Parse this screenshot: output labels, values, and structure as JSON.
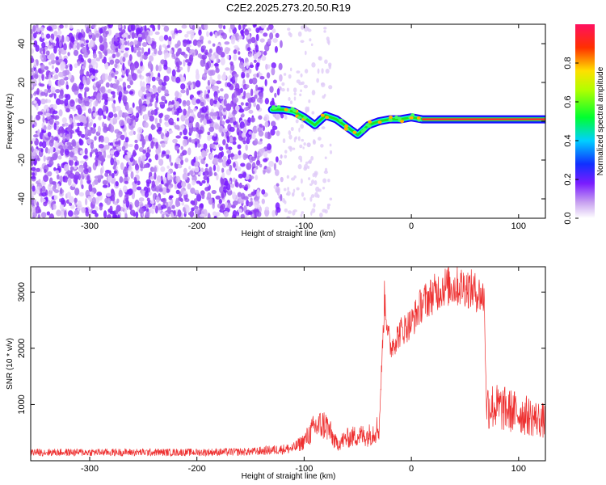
{
  "title": "C2E2.2025.273.20.50.R19",
  "chart_data": [
    {
      "type": "heatmap",
      "xlabel": "Height of straight line (km)",
      "ylabel": "Frequency (Hz)",
      "xlim": [
        -355,
        125
      ],
      "ylim": [
        -50,
        50
      ],
      "xticks": [
        -300,
        -200,
        -100,
        0,
        100
      ],
      "yticks": [
        -40,
        -20,
        0,
        20,
        40
      ],
      "colorbar": {
        "label": "Normalized spectral amplitude",
        "range": [
          0,
          1
        ],
        "ticks": [
          "0.0",
          "0.2",
          "0.4",
          "0.6",
          "0.8"
        ]
      },
      "trace": {
        "x": [
          -130,
          -120,
          -110,
          -100,
          -90,
          -80,
          -70,
          -60,
          -50,
          -40,
          -30,
          -20,
          -10,
          0,
          10,
          50,
          125
        ],
        "y": [
          6,
          6,
          5,
          2,
          -2,
          3,
          1,
          -3,
          -7,
          -2,
          0,
          1,
          1,
          2,
          1,
          1,
          1
        ]
      },
      "grid": false
    },
    {
      "type": "line",
      "xlabel": "Height of straight line (km)",
      "ylabel": "SNR (10 * v/v)",
      "xlim": [
        -355,
        125
      ],
      "ylim": [
        0,
        3450
      ],
      "xticks": [
        -300,
        -200,
        -100,
        0,
        100
      ],
      "yticks": [
        1000,
        2000,
        3000
      ],
      "series": [
        {
          "color": "#ee3030",
          "x": [
            -355,
            -300,
            -250,
            -200,
            -150,
            -110,
            -100,
            -90,
            -80,
            -70,
            -60,
            -50,
            -40,
            -30,
            -25,
            -20,
            -10,
            0,
            10,
            30,
            50,
            60,
            68,
            70,
            80,
            100,
            125
          ],
          "y": [
            150,
            150,
            150,
            150,
            160,
            220,
            350,
            600,
            650,
            300,
            400,
            450,
            450,
            600,
            2900,
            2000,
            2300,
            2450,
            2800,
            3100,
            3100,
            3000,
            2900,
            1000,
            950,
            850,
            700
          ]
        }
      ],
      "grid": false
    }
  ]
}
